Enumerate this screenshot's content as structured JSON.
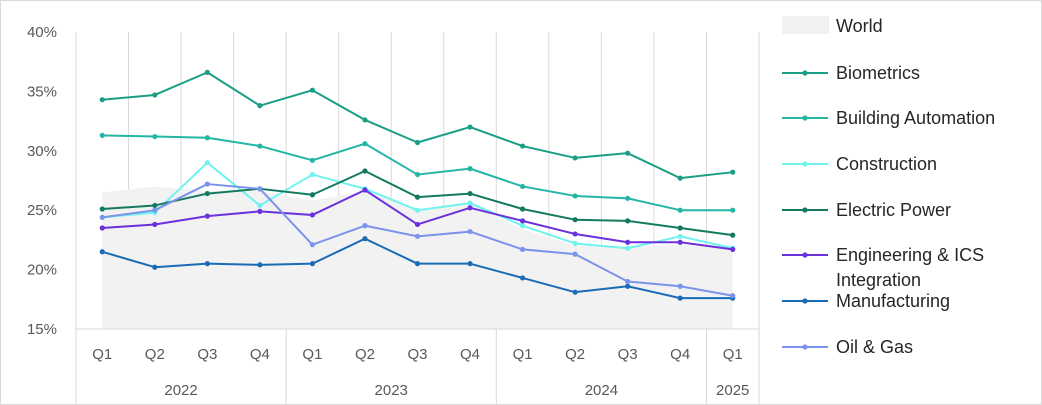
{
  "chart_data": {
    "type": "line",
    "quarters": [
      "Q1",
      "Q2",
      "Q3",
      "Q4",
      "Q1",
      "Q2",
      "Q3",
      "Q4",
      "Q1",
      "Q2",
      "Q3",
      "Q4",
      "Q1"
    ],
    "years": [
      {
        "label": "2022",
        "span": 4
      },
      {
        "label": "2023",
        "span": 4
      },
      {
        "label": "2024",
        "span": 4
      },
      {
        "label": "2025",
        "span": 1
      }
    ],
    "y_ticks": [
      "40%",
      "35%",
      "30%",
      "25%",
      "20%",
      "15%"
    ],
    "ylim": [
      15,
      40
    ],
    "y_unit": "%",
    "grid": "vertical",
    "legend_position": "right",
    "area": {
      "name": "World",
      "color": "#f2f2f2",
      "values": [
        26.5,
        27.0,
        26.6,
        26.6,
        25.8,
        26.6,
        25.0,
        25.6,
        23.4,
        22.0,
        21.9,
        22.1,
        21.7
      ]
    },
    "series": [
      {
        "name": "Biometrics",
        "color": "#1a9e86",
        "values": [
          34.3,
          34.7,
          36.6,
          33.8,
          35.1,
          32.6,
          30.7,
          32.0,
          30.4,
          29.4,
          29.8,
          27.7,
          28.2
        ]
      },
      {
        "name": "Building Automation",
        "color": "#23b6a4",
        "values": [
          31.3,
          31.2,
          31.1,
          30.4,
          29.2,
          30.6,
          28.0,
          28.5,
          27.0,
          26.2,
          26.0,
          25.0,
          25.0
        ]
      },
      {
        "name": "Construction",
        "color": "#6ef3ee",
        "values": [
          24.4,
          24.8,
          29.0,
          25.4,
          28.0,
          26.8,
          25.0,
          25.6,
          23.7,
          22.2,
          21.8,
          22.8,
          21.8
        ]
      },
      {
        "name": "Electric Power",
        "color": "#137a60",
        "values": [
          25.1,
          25.4,
          26.4,
          26.8,
          26.3,
          28.3,
          26.1,
          26.4,
          25.1,
          24.2,
          24.1,
          23.5,
          22.9
        ]
      },
      {
        "name": "Engineering & ICS Integration",
        "color": "#6a31dd",
        "values": [
          23.5,
          23.8,
          24.5,
          24.9,
          24.6,
          26.7,
          23.8,
          25.2,
          24.1,
          23.0,
          22.3,
          22.3,
          21.7
        ]
      },
      {
        "name": "Manufacturing",
        "color": "#1a6bb5",
        "values": [
          21.5,
          20.2,
          20.5,
          20.4,
          20.5,
          22.6,
          20.5,
          20.5,
          19.3,
          18.1,
          18.6,
          17.6,
          17.6
        ]
      },
      {
        "name": "Oil & Gas",
        "color": "#7b93ea",
        "values": [
          24.4,
          25.0,
          27.2,
          26.8,
          22.1,
          23.7,
          22.8,
          23.2,
          21.7,
          21.3,
          19.0,
          18.6,
          17.8
        ]
      }
    ]
  }
}
